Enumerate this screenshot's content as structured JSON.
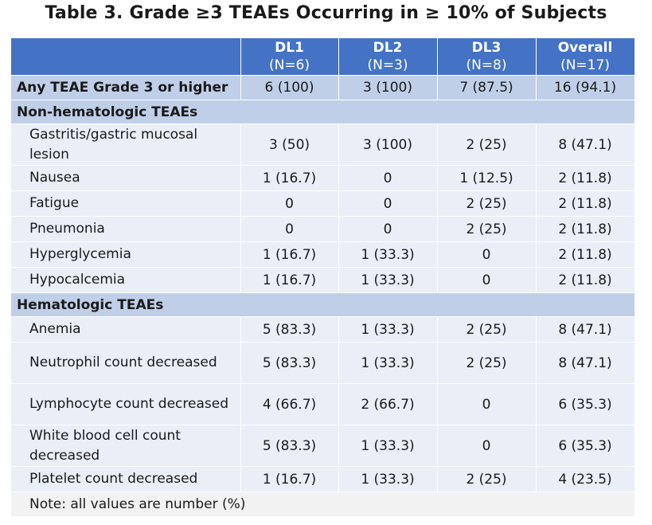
{
  "title": "Table 3. Grade ≥3 TEAEs Occurring in ≥ 10% of Subjects",
  "columns": [
    {
      "name": "DL1",
      "n": "(N=6)"
    },
    {
      "name": "DL2",
      "n": "(N=3)"
    },
    {
      "name": "DL3",
      "n": "(N=8)"
    },
    {
      "name": "Overall",
      "n": "(N=17)"
    }
  ],
  "any_row": {
    "label": "Any TEAE Grade 3 or higher",
    "values": [
      "6 (100)",
      "3 (100)",
      "7 (87.5)",
      "16 (94.1)"
    ]
  },
  "sections": [
    {
      "label": "Non-hematologic TEAEs",
      "rows": [
        {
          "label": "Gastritis/gastric mucosal lesion",
          "values": [
            "3 (50)",
            "3 (100)",
            "2 (25)",
            "8 (47.1)"
          ]
        },
        {
          "label": "Nausea",
          "values": [
            "1 (16.7)",
            "0",
            "1 (12.5)",
            "2 (11.8)"
          ]
        },
        {
          "label": "Fatigue",
          "values": [
            "0",
            "0",
            "2 (25)",
            "2 (11.8)"
          ]
        },
        {
          "label": "Pneumonia",
          "values": [
            "0",
            "0",
            "2 (25)",
            "2 (11.8)"
          ]
        },
        {
          "label": "Hyperglycemia",
          "values": [
            "1 (16.7)",
            "1 (33.3)",
            "0",
            "2 (11.8)"
          ]
        },
        {
          "label": "Hypocalcemia",
          "values": [
            "1 (16.7)",
            "1 (33.3)",
            "0",
            "2 (11.8)"
          ]
        }
      ]
    },
    {
      "label": "Hematologic TEAEs",
      "rows": [
        {
          "label": "Anemia",
          "values": [
            "5 (83.3)",
            "1 (33.3)",
            "2 (25)",
            "8 (47.1)"
          ]
        },
        {
          "label": "Neutrophil count decreased",
          "values": [
            "5 (83.3)",
            "1 (33.3)",
            "2 (25)",
            "8 (47.1)"
          ]
        },
        {
          "label": "Lymphocyte count decreased",
          "values": [
            "4 (66.7)",
            "2 (66.7)",
            "0",
            "6 (35.3)"
          ]
        },
        {
          "label": "White blood cell count decreased",
          "values": [
            "5 (83.3)",
            "1 (33.3)",
            "0",
            "6  (35.3)"
          ]
        },
        {
          "label": "Platelet count decreased",
          "values": [
            "1 (16.7)",
            "1 (33.3)",
            "2 (25)",
            "4 (23.5)"
          ]
        }
      ]
    }
  ],
  "note": "Note: all values are number (%)"
}
